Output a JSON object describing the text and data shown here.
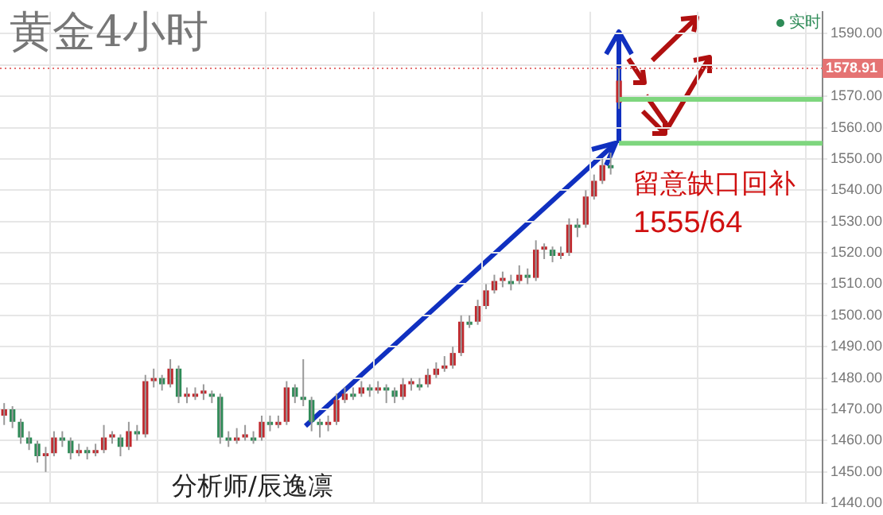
{
  "chart_data": {
    "type": "candlestick",
    "title": "黄金4小时",
    "categories": [
      null,
      null,
      null,
      null,
      null,
      null,
      null,
      null,
      null,
      null,
      null,
      null,
      null,
      null,
      null,
      null,
      null,
      null,
      null,
      null,
      null,
      null,
      null,
      null,
      null,
      null,
      null,
      null,
      null,
      null,
      null,
      null,
      null,
      null,
      null,
      null,
      null,
      null,
      null,
      null,
      null,
      null,
      null,
      null,
      null,
      null,
      null,
      null,
      null,
      null,
      null,
      null,
      null,
      null,
      null,
      null,
      null,
      null,
      null,
      null,
      null,
      null,
      null,
      null,
      null,
      null,
      null,
      null,
      null,
      null,
      null,
      null,
      null,
      null,
      null,
      null,
      null,
      null,
      null,
      null,
      null,
      null,
      null,
      null,
      null,
      null,
      null,
      null,
      null,
      null,
      null,
      null,
      null,
      null,
      null,
      null,
      null,
      null,
      null
    ],
    "ohlc": [
      [
        1468,
        1472,
        1465,
        1470
      ],
      [
        1470,
        1471,
        1464,
        1466
      ],
      [
        1466,
        1467,
        1459,
        1461
      ],
      [
        1461,
        1463,
        1457,
        1459
      ],
      [
        1459,
        1460,
        1453,
        1455
      ],
      [
        1455,
        1458,
        1450,
        1456
      ],
      [
        1456,
        1463,
        1455,
        1461
      ],
      [
        1461,
        1463,
        1458,
        1460
      ],
      [
        1460,
        1461,
        1454,
        1456
      ],
      [
        1456,
        1459,
        1455,
        1457
      ],
      [
        1457,
        1458,
        1454,
        1456
      ],
      [
        1456,
        1459,
        1455,
        1457
      ],
      [
        1457,
        1465,
        1456,
        1461
      ],
      [
        1461,
        1463,
        1459,
        1462
      ],
      [
        1461,
        1462,
        1455,
        1458
      ],
      [
        1458,
        1466,
        1457,
        1463
      ],
      [
        1463,
        1465,
        1460,
        1462
      ],
      [
        1462,
        1481,
        1461,
        1479
      ],
      [
        1479,
        1483,
        1477,
        1480
      ],
      [
        1480,
        1481,
        1476,
        1478
      ],
      [
        1478,
        1486,
        1477,
        1483
      ],
      [
        1483,
        1484,
        1472,
        1474
      ],
      [
        1474,
        1477,
        1472,
        1475
      ],
      [
        1474,
        1477,
        1473,
        1475
      ],
      [
        1475,
        1478,
        1473,
        1476
      ],
      [
        1475,
        1476,
        1472,
        1474
      ],
      [
        1474,
        1475,
        1459,
        1461
      ],
      [
        1461,
        1463,
        1458,
        1460
      ],
      [
        1460,
        1464,
        1459,
        1461
      ],
      [
        1461,
        1465,
        1460,
        1462
      ],
      [
        1461,
        1463,
        1459,
        1460
      ],
      [
        1461,
        1468,
        1460,
        1466
      ],
      [
        1466,
        1468,
        1463,
        1465
      ],
      [
        1465,
        1468,
        1464,
        1466
      ],
      [
        1466,
        1479,
        1465,
        1477
      ],
      [
        1477,
        1478,
        1472,
        1474
      ],
      [
        1474,
        1486,
        1471,
        1473
      ],
      [
        1473,
        1474,
        1463,
        1466
      ],
      [
        1466,
        1467,
        1461,
        1465
      ],
      [
        1465,
        1468,
        1463,
        1466
      ],
      [
        1466,
        1475,
        1465,
        1473
      ],
      [
        1473,
        1477,
        1472,
        1475
      ],
      [
        1475,
        1477,
        1473,
        1474
      ],
      [
        1475,
        1479,
        1474,
        1477
      ],
      [
        1477,
        1478,
        1474,
        1476
      ],
      [
        1476,
        1479,
        1475,
        1477
      ],
      [
        1477,
        1478,
        1472,
        1476
      ],
      [
        1476,
        1477,
        1472,
        1474
      ],
      [
        1474,
        1480,
        1473,
        1478
      ],
      [
        1478,
        1480,
        1476,
        1479
      ],
      [
        1478,
        1480,
        1476,
        1477
      ],
      [
        1478,
        1483,
        1477,
        1481
      ],
      [
        1481,
        1485,
        1480,
        1483
      ],
      [
        1483,
        1487,
        1482,
        1484
      ],
      [
        1484,
        1490,
        1483,
        1488
      ],
      [
        1488,
        1500,
        1487,
        1498
      ],
      [
        1498,
        1500,
        1496,
        1497
      ],
      [
        1498,
        1505,
        1497,
        1503
      ],
      [
        1503,
        1510,
        1502,
        1508
      ],
      [
        1508,
        1513,
        1507,
        1511
      ],
      [
        1511,
        1514,
        1509,
        1512
      ],
      [
        1511,
        1513,
        1508,
        1510
      ],
      [
        1511,
        1516,
        1510,
        1513
      ],
      [
        1513,
        1515,
        1510,
        1512
      ],
      [
        1512,
        1524,
        1511,
        1521
      ],
      [
        1521,
        1523,
        1518,
        1522
      ],
      [
        1521,
        1522,
        1517,
        1519
      ],
      [
        1519,
        1522,
        1518,
        1520
      ],
      [
        1520,
        1531,
        1519,
        1529
      ],
      [
        1529,
        1531,
        1525,
        1528
      ],
      [
        1529,
        1540,
        1528,
        1538
      ],
      [
        1538,
        1545,
        1537,
        1543
      ],
      [
        1543,
        1550,
        1542,
        1548
      ],
      [
        1548,
        1552,
        1545,
        1547
      ],
      [
        1568,
        1579,
        1566,
        1575
      ],
      null,
      null,
      null,
      null,
      null,
      null,
      null,
      null,
      null,
      null,
      null,
      null,
      null,
      null,
      null,
      null,
      null,
      null,
      null,
      null,
      null,
      null,
      null,
      null
    ],
    "colors": [
      "#c0282d",
      "#2e8b57",
      "#2e8b57",
      "#2e8b57",
      "#2e8b57",
      "#c0282d",
      "#c0282d",
      "#2e8b57",
      "#2e8b57",
      "#c0282d",
      "#2e8b57",
      "#c0282d",
      "#c0282d",
      "#c0282d",
      "#2e8b57",
      "#c0282d",
      "#2e8b57",
      "#c0282d",
      "#c0282d",
      "#2e8b57",
      "#c0282d",
      "#2e8b57",
      "#c0282d",
      "#c0282d",
      "#c0282d",
      "#2e8b57",
      "#2e8b57",
      "#2e8b57",
      "#c0282d",
      "#c0282d",
      "#2e8b57",
      "#c0282d",
      "#2e8b57",
      "#c0282d",
      "#c0282d",
      "#2e8b57",
      "#2e8b57",
      "#2e8b57",
      "#2e8b57",
      "#c0282d",
      "#c0282d",
      "#c0282d",
      "#2e8b57",
      "#c0282d",
      "#2e8b57",
      "#c0282d",
      "#2e8b57",
      "#2e8b57",
      "#c0282d",
      "#c0282d",
      "#2e8b57",
      "#c0282d",
      "#c0282d",
      "#c0282d",
      "#c0282d",
      "#c0282d",
      "#2e8b57",
      "#c0282d",
      "#c0282d",
      "#c0282d",
      "#c0282d",
      "#2e8b57",
      "#c0282d",
      "#2e8b57",
      "#c0282d",
      "#c0282d",
      "#2e8b57",
      "#c0282d",
      "#c0282d",
      "#2e8b57",
      "#c0282d",
      "#c0282d",
      "#c0282d",
      "#2e8b57",
      "#c0282d",
      null,
      null,
      null,
      null,
      null,
      null,
      null,
      null,
      null,
      null,
      null,
      null,
      null,
      null,
      null,
      null,
      null,
      null,
      null,
      null,
      null,
      null,
      null,
      null
    ],
    "ylim": [
      1440,
      1597
    ],
    "yticks": [
      {
        "value": 1440,
        "label": "1440.00"
      },
      {
        "value": 1450,
        "label": "1450.00"
      },
      {
        "value": 1460,
        "label": "1460.00"
      },
      {
        "value": 1470,
        "label": "1470.00"
      },
      {
        "value": 1480,
        "label": "1480.00"
      },
      {
        "value": 1490,
        "label": "1490.00"
      },
      {
        "value": 1500,
        "label": "1500.00"
      },
      {
        "value": 1510,
        "label": "1510.00"
      },
      {
        "value": 1520,
        "label": "1520.00"
      },
      {
        "value": 1530,
        "label": "1530.00"
      },
      {
        "value": 1540,
        "label": "1540.00"
      },
      {
        "value": 1550,
        "label": "1550.00"
      },
      {
        "value": 1560,
        "label": "1560.00"
      },
      {
        "value": 1570,
        "label": "1570.00"
      },
      {
        "value": 1580,
        "label": null
      },
      {
        "value": 1590,
        "label": "1590.00"
      }
    ],
    "grid": true,
    "legend": false,
    "ref_lines": [
      {
        "axis": "y",
        "value": 1578.91,
        "label": "1578.91",
        "color": "#e57373",
        "line_style": "dotted"
      },
      {
        "axis": "y",
        "value": 1569,
        "color": "#7ed67e",
        "line_style": "solid"
      },
      {
        "axis": "y",
        "value": 1555,
        "color": "#7ed67e",
        "line_style": "solid"
      }
    ],
    "annotations": [
      "实时",
      "留意缺口回补",
      "1555/64",
      "分析师/辰逸凛"
    ]
  }
}
